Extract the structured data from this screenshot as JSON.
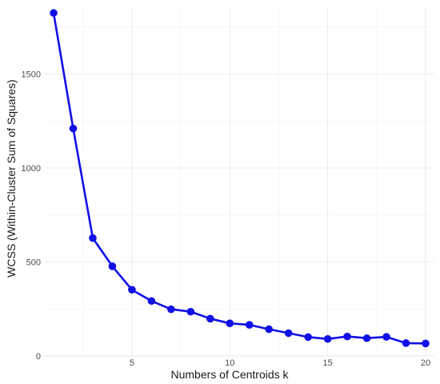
{
  "chart_data": {
    "type": "line",
    "title": "",
    "xlabel": "Numbers of Centroids k",
    "ylabel": "WCSS (Within-Cluster Sum of Squares)",
    "x": [
      1,
      2,
      3,
      4,
      5,
      6,
      7,
      8,
      9,
      10,
      11,
      12,
      13,
      14,
      15,
      16,
      17,
      18,
      19,
      20
    ],
    "series": [
      {
        "values": [
          1825,
          1210,
          627,
          477,
          352,
          292,
          248,
          235,
          198,
          173,
          165,
          142,
          121,
          100,
          90,
          103,
          94,
          101,
          68,
          66
        ]
      }
    ],
    "x_ticks": [
      5,
      10,
      15,
      20
    ],
    "y_ticks": [
      0,
      500,
      1000,
      1500
    ],
    "xlim": [
      0.55,
      20.45
    ],
    "ylim": [
      -5,
      1860
    ],
    "grid": true,
    "line_color": "#1010e6",
    "marker_color": "#1010e6"
  }
}
